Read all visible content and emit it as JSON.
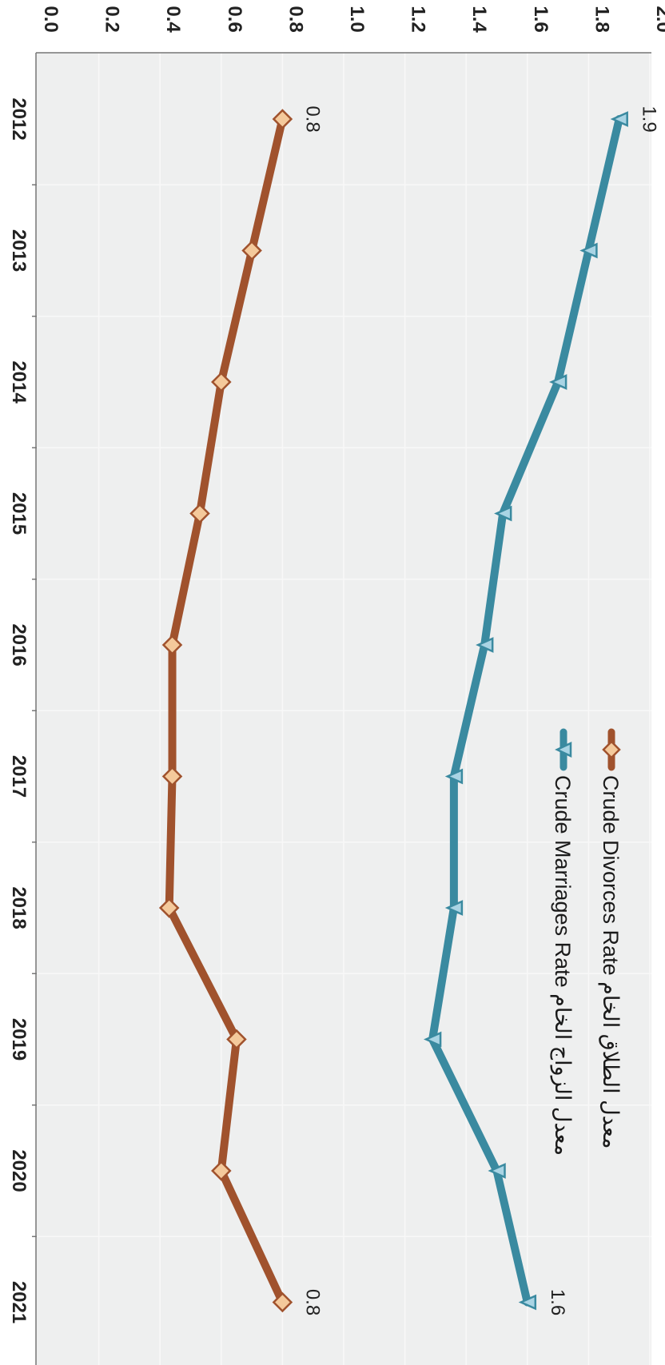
{
  "chart_data": {
    "type": "line",
    "orientation": "rotated-90-clockwise",
    "x": [
      "2012",
      "2013",
      "2014",
      "2015",
      "2016",
      "2017",
      "2018",
      "2019",
      "2020",
      "2021"
    ],
    "ylim": [
      0,
      2
    ],
    "yticks": [
      "0.0",
      "0.2",
      "0.4",
      "0.6",
      "0.8",
      "1.0",
      "1.2",
      "1.4",
      "1.6",
      "1.8",
      "2.0"
    ],
    "grid": true,
    "legend_position": "top-right",
    "series": [
      {
        "name": "Crude Divorces Rate معدل الطلاق الخام",
        "values": [
          0.8,
          0.7,
          0.6,
          0.53,
          0.44,
          0.44,
          0.43,
          0.65,
          0.6,
          0.8
        ],
        "color": "#a0522d",
        "marker": "diamond",
        "marker_color": "#f4c99b",
        "end_labels": [
          "0.8",
          "0.8"
        ]
      },
      {
        "name": "Crude Marriages Rate معدل الزواج الخام",
        "values": [
          1.9,
          1.8,
          1.7,
          1.52,
          1.46,
          1.36,
          1.36,
          1.29,
          1.5,
          1.6
        ],
        "color": "#3a8aa0",
        "marker": "triangle",
        "marker_color": "#a9d4e4",
        "end_labels": [
          "1.9",
          "1.6"
        ]
      }
    ]
  },
  "colors": {
    "plot_background": "#eeefef",
    "axis": "#777777",
    "grid": "#f8f8f8"
  }
}
